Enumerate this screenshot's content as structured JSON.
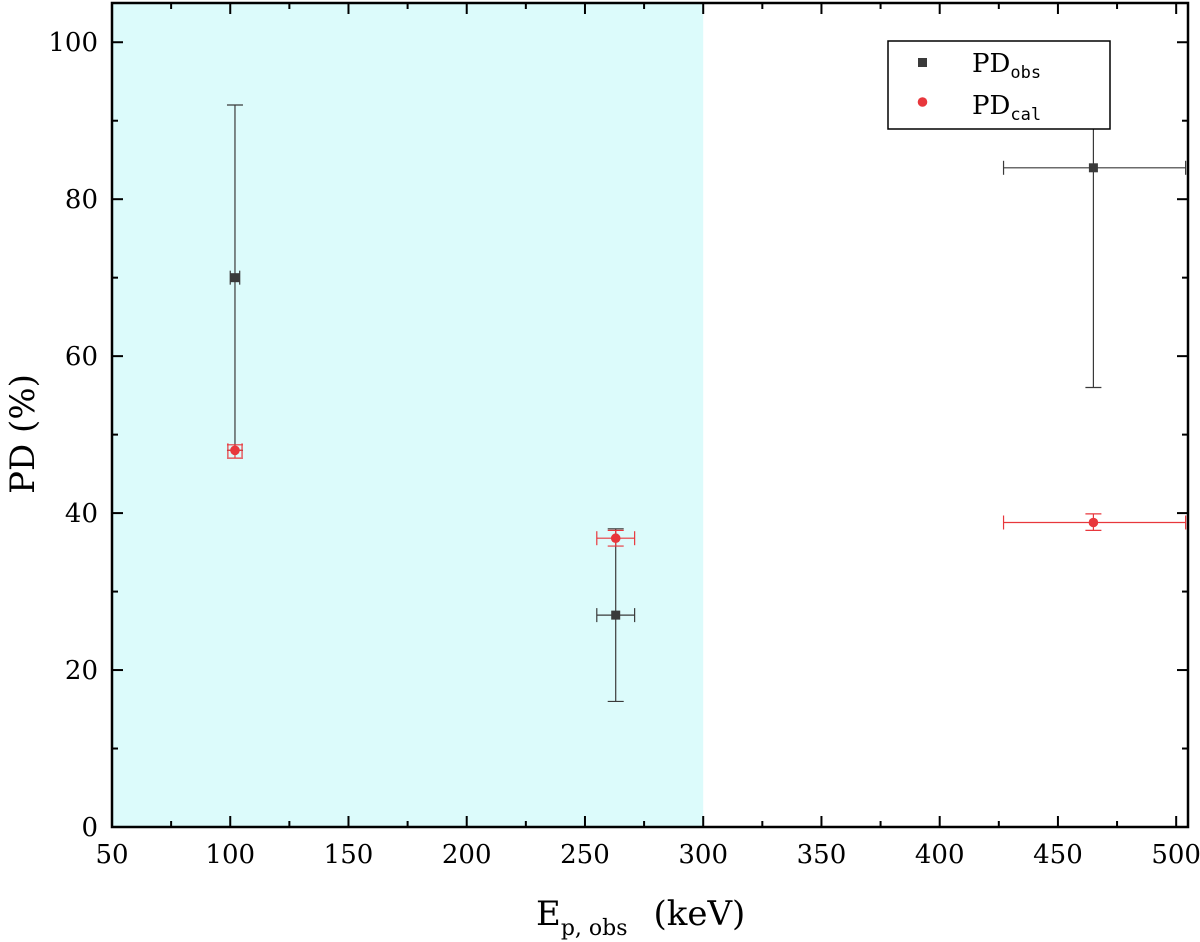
{
  "chart_data": {
    "type": "scatter",
    "xlabel": {
      "main": "E",
      "sub": "p, obs",
      "unit": "(keV)"
    },
    "ylabel": "PD (%)",
    "xlim": [
      50,
      505
    ],
    "ylim": [
      0,
      105
    ],
    "x_ticks": [
      50,
      100,
      150,
      200,
      250,
      300,
      350,
      400,
      450,
      500
    ],
    "y_ticks": [
      0,
      20,
      40,
      60,
      80,
      100
    ],
    "shaded_region": {
      "x": [
        50,
        300
      ],
      "color": "#dcfbfb"
    },
    "grid": false,
    "legend_position": "top-right",
    "series": [
      {
        "name": "PD",
        "name_sub": "obs",
        "marker": "square",
        "color": "#3a3a3a",
        "points": [
          {
            "x": 102,
            "y": 70,
            "x_lo": 100,
            "x_hi": 104,
            "y_lo": 48,
            "y_hi": 92
          },
          {
            "x": 263,
            "y": 27,
            "x_lo": 255,
            "x_hi": 271,
            "y_lo": 16,
            "y_hi": 38
          },
          {
            "x": 465,
            "y": 84,
            "x_lo": 427,
            "x_hi": 504,
            "y_lo": 56,
            "y_hi": 100
          }
        ]
      },
      {
        "name": "PD",
        "name_sub": "cal",
        "marker": "circle",
        "color": "#e8373c",
        "points": [
          {
            "x": 102,
            "y": 48,
            "x_lo": 99,
            "x_hi": 105,
            "y_lo": 47,
            "y_hi": 48.7
          },
          {
            "x": 263,
            "y": 36.8,
            "x_lo": 255,
            "x_hi": 271,
            "y_lo": 35.8,
            "y_hi": 37.8
          },
          {
            "x": 465,
            "y": 38.8,
            "x_lo": 427,
            "x_hi": 504,
            "y_lo": 37.8,
            "y_hi": 39.9
          }
        ]
      }
    ]
  }
}
